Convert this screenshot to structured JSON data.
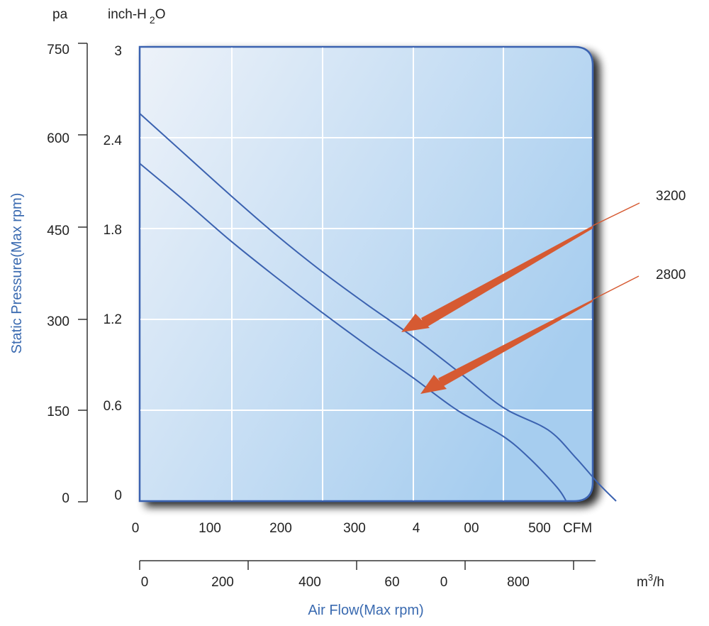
{
  "chart_data": {
    "type": "line",
    "title": "",
    "ylabel": "Static Pressure(Max rpm)",
    "xlabel": "Air Flow(Max rpm)",
    "y_units": {
      "left": "pa",
      "right_main": "inch-H",
      "right_sub": "2",
      "right_tail": "O"
    },
    "x_units": {
      "cfm": "CFM",
      "m3h_main": "m",
      "m3h_sup": "3",
      "m3h_tail": "/h"
    },
    "pa_ticks": [
      "750",
      "600",
      "450",
      "300",
      "150",
      "0"
    ],
    "inh2o_ticks": [
      "3",
      "2.4",
      "1.8",
      "1.2",
      "0.6",
      "0"
    ],
    "cfm_ticks": [
      "0",
      "100",
      "200",
      "300",
      "4",
      "00",
      "500"
    ],
    "m3h_ticks": [
      "0",
      "200",
      "400",
      "60",
      "0",
      "800"
    ],
    "xlim_cfm": [
      0,
      500
    ],
    "ylim_inh2o": [
      0,
      3
    ],
    "grid": true,
    "series": [
      {
        "name": "3200",
        "color": "#3b62b0",
        "points": [
          [
            0,
            2.56
          ],
          [
            50,
            2.29
          ],
          [
            100,
            2.02
          ],
          [
            150,
            1.76
          ],
          [
            200,
            1.52
          ],
          [
            250,
            1.3
          ],
          [
            300,
            1.09
          ],
          [
            350,
            0.86
          ],
          [
            400,
            0.62
          ],
          [
            450,
            0.47
          ],
          [
            480,
            0.29
          ],
          [
            505,
            0.12
          ],
          [
            525,
            0.0
          ]
        ]
      },
      {
        "name": "2800",
        "color": "#3b62b0",
        "points": [
          [
            0,
            2.23
          ],
          [
            50,
            1.98
          ],
          [
            100,
            1.72
          ],
          [
            150,
            1.48
          ],
          [
            200,
            1.25
          ],
          [
            250,
            1.03
          ],
          [
            300,
            0.82
          ],
          [
            350,
            0.6
          ],
          [
            400,
            0.43
          ],
          [
            430,
            0.28
          ],
          [
            460,
            0.09
          ],
          [
            470,
            0.0
          ]
        ]
      }
    ]
  }
}
